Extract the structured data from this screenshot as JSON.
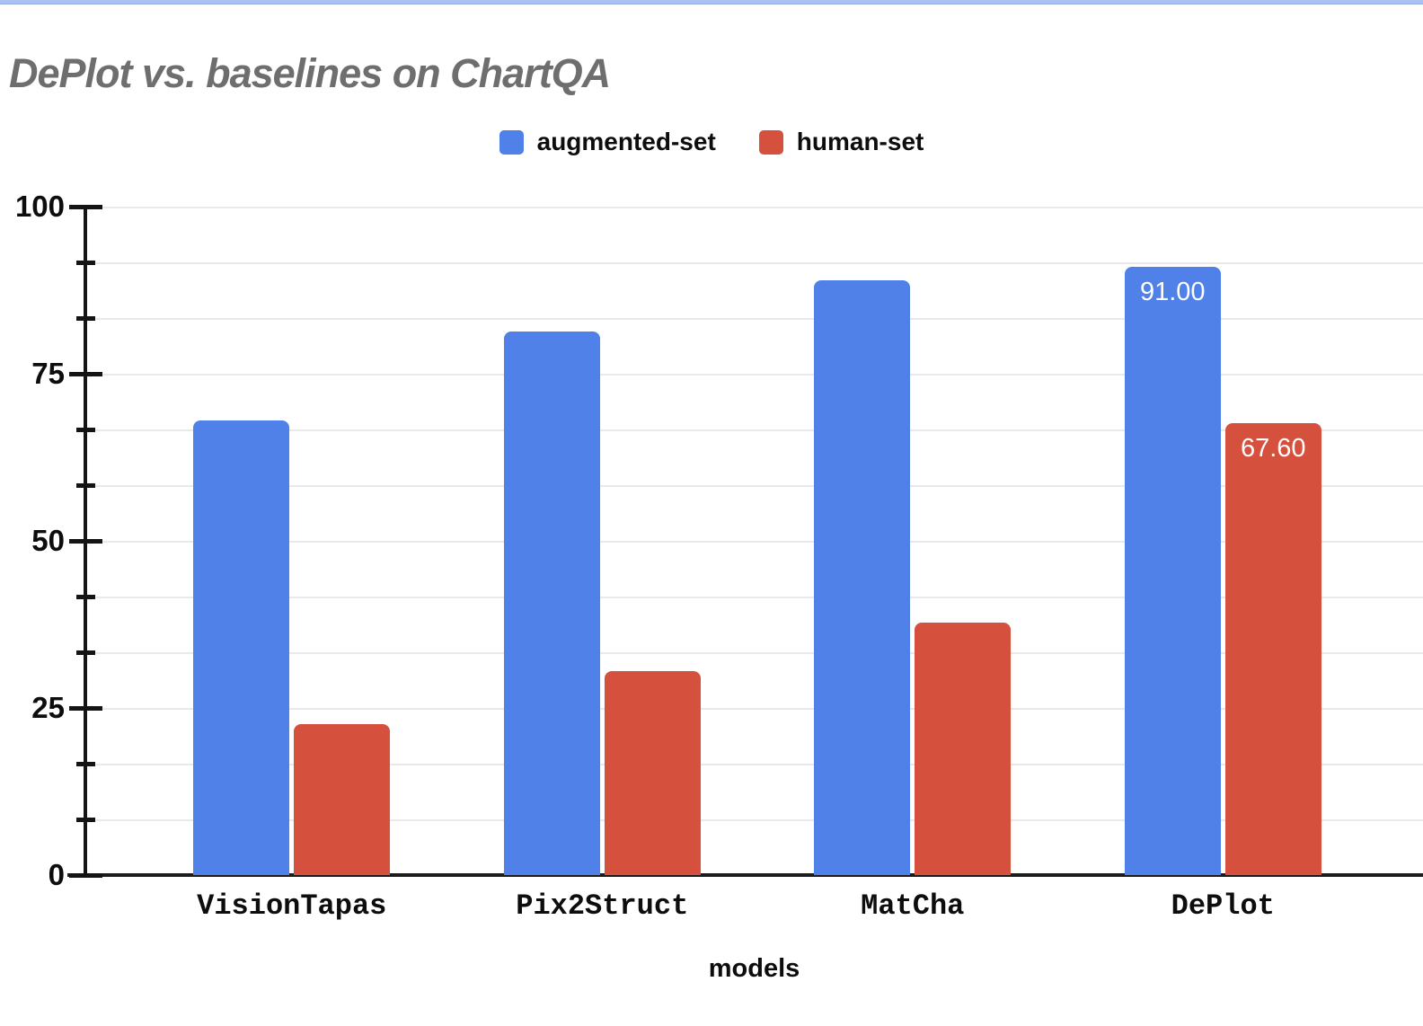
{
  "window": {
    "top_strip_color": "#a9c2f2",
    "background": "#ffffff"
  },
  "title": {
    "text": "DePlot vs. baselines on ChartQA",
    "color": "#6e6e6e"
  },
  "legend": {
    "items": [
      {
        "label": "augmented-set",
        "color": "#4f81e8"
      },
      {
        "label": "human-set",
        "color": "#d6503e"
      }
    ]
  },
  "chart_data": {
    "type": "bar",
    "title": "DePlot vs. baselines on ChartQA",
    "xlabel": "models",
    "ylabel": "",
    "categories": [
      "VisionTapas",
      "Pix2Struct",
      "MatCha",
      "DePlot"
    ],
    "series": [
      {
        "name": "augmented-set",
        "color": "#4f81e8",
        "values": [
          68,
          81.3,
          89,
          91.0
        ],
        "value_labels": [
          "",
          "",
          "",
          "91.00"
        ]
      },
      {
        "name": "human-set",
        "color": "#d6503e",
        "values": [
          22.6,
          30.5,
          37.8,
          67.6
        ],
        "value_labels": [
          "",
          "",
          "",
          "67.60"
        ]
      }
    ],
    "ylim": [
      0,
      100
    ],
    "yticks": [
      0,
      25,
      50,
      75,
      100
    ],
    "minor_tick_step": 8.333,
    "grid": true,
    "gridline_color": "#e9e9e9",
    "legend_position": "top-center",
    "bar_corner_radius": "rounded-top",
    "value_label_color": "#ffffff"
  }
}
